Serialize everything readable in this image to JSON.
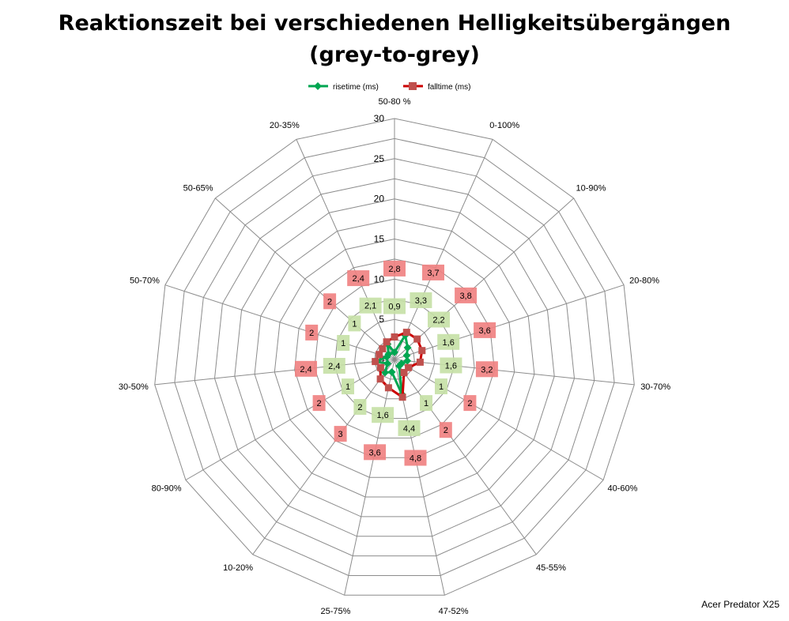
{
  "title": "Reaktionszeit bei verschiedenen Helligkeitsübergängen",
  "subtitle": "(grey-to-grey)",
  "watermark": "Acer Predator X25",
  "colors": {
    "rise_line": "#00a651",
    "fall_line": "#cc0000",
    "rise_label_bg": "#c5e0a5",
    "fall_label_bg": "#f08080",
    "fall_marker": "#c0504d",
    "grid": "#8c8c8c"
  },
  "chart_data": {
    "type": "radar",
    "title": "Reaktionszeit bei verschiedenen Helligkeitsübergängen (grey-to-grey)",
    "categories": [
      "50-80 %",
      "0-100%",
      "10-90%",
      "20-80%",
      "30-70%",
      "40-60%",
      "45-55%",
      "47-52%",
      "25-75%",
      "10-20%",
      "80-90%",
      "30-50%",
      "50-70%",
      "50-65%",
      "20-35%"
    ],
    "series": [
      {
        "name": "risetime (ms)",
        "marker": "diamond",
        "values": [
          0.9,
          3.3,
          2.2,
          1.6,
          1.6,
          1,
          1,
          4.4,
          1.6,
          2,
          1,
          2.4,
          1,
          1,
          2.1
        ]
      },
      {
        "name": "falltime (ms)",
        "marker": "square",
        "values": [
          2.8,
          3.7,
          3.8,
          3.6,
          3.2,
          2,
          2,
          4.8,
          3.6,
          3,
          2,
          2.4,
          2,
          2,
          2.4
        ]
      }
    ],
    "rlim": [
      0,
      30
    ],
    "rticks": [
      "0",
      "5",
      "10",
      "15",
      "20",
      "25",
      "30"
    ],
    "grid": true,
    "legend_position": "top"
  }
}
